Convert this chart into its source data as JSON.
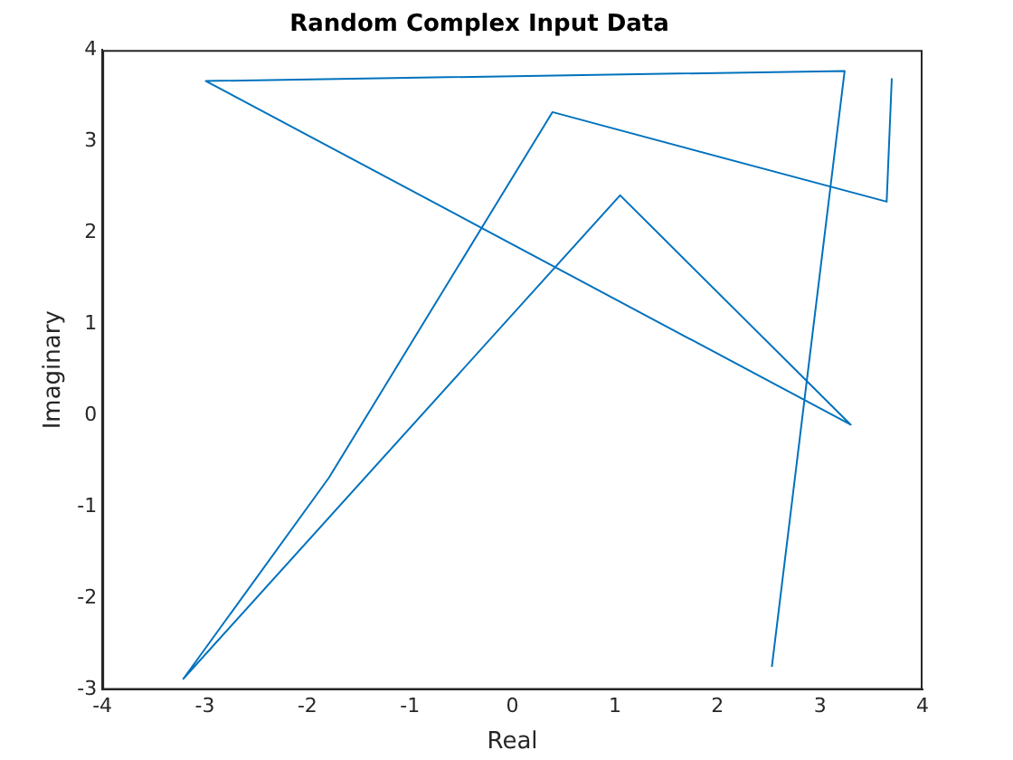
{
  "chart_data": {
    "type": "line",
    "title": "Random Complex Input Data",
    "xlabel": "Real",
    "ylabel": "Imaginary",
    "x": [
      3.7,
      3.65,
      0.39,
      -1.79,
      -3.21,
      1.05,
      3.3,
      -2.99,
      3.24,
      2.53
    ],
    "series": [
      {
        "color": "#0072bd",
        "values": [
          3.69,
          2.34,
          3.32,
          -0.68,
          -2.88,
          2.41,
          -0.1,
          3.66,
          3.77,
          -2.75
        ]
      }
    ],
    "xlim": [
      -4,
      4
    ],
    "xticks": [
      -4,
      -3,
      -2,
      -1,
      0,
      1,
      2,
      3,
      4
    ],
    "ylim": [
      -3,
      4
    ],
    "yticks": [
      -3,
      -2,
      -1,
      0,
      1,
      2,
      3,
      4
    ],
    "grid": false,
    "legend": false,
    "marker": "none",
    "line_style": "solid"
  }
}
